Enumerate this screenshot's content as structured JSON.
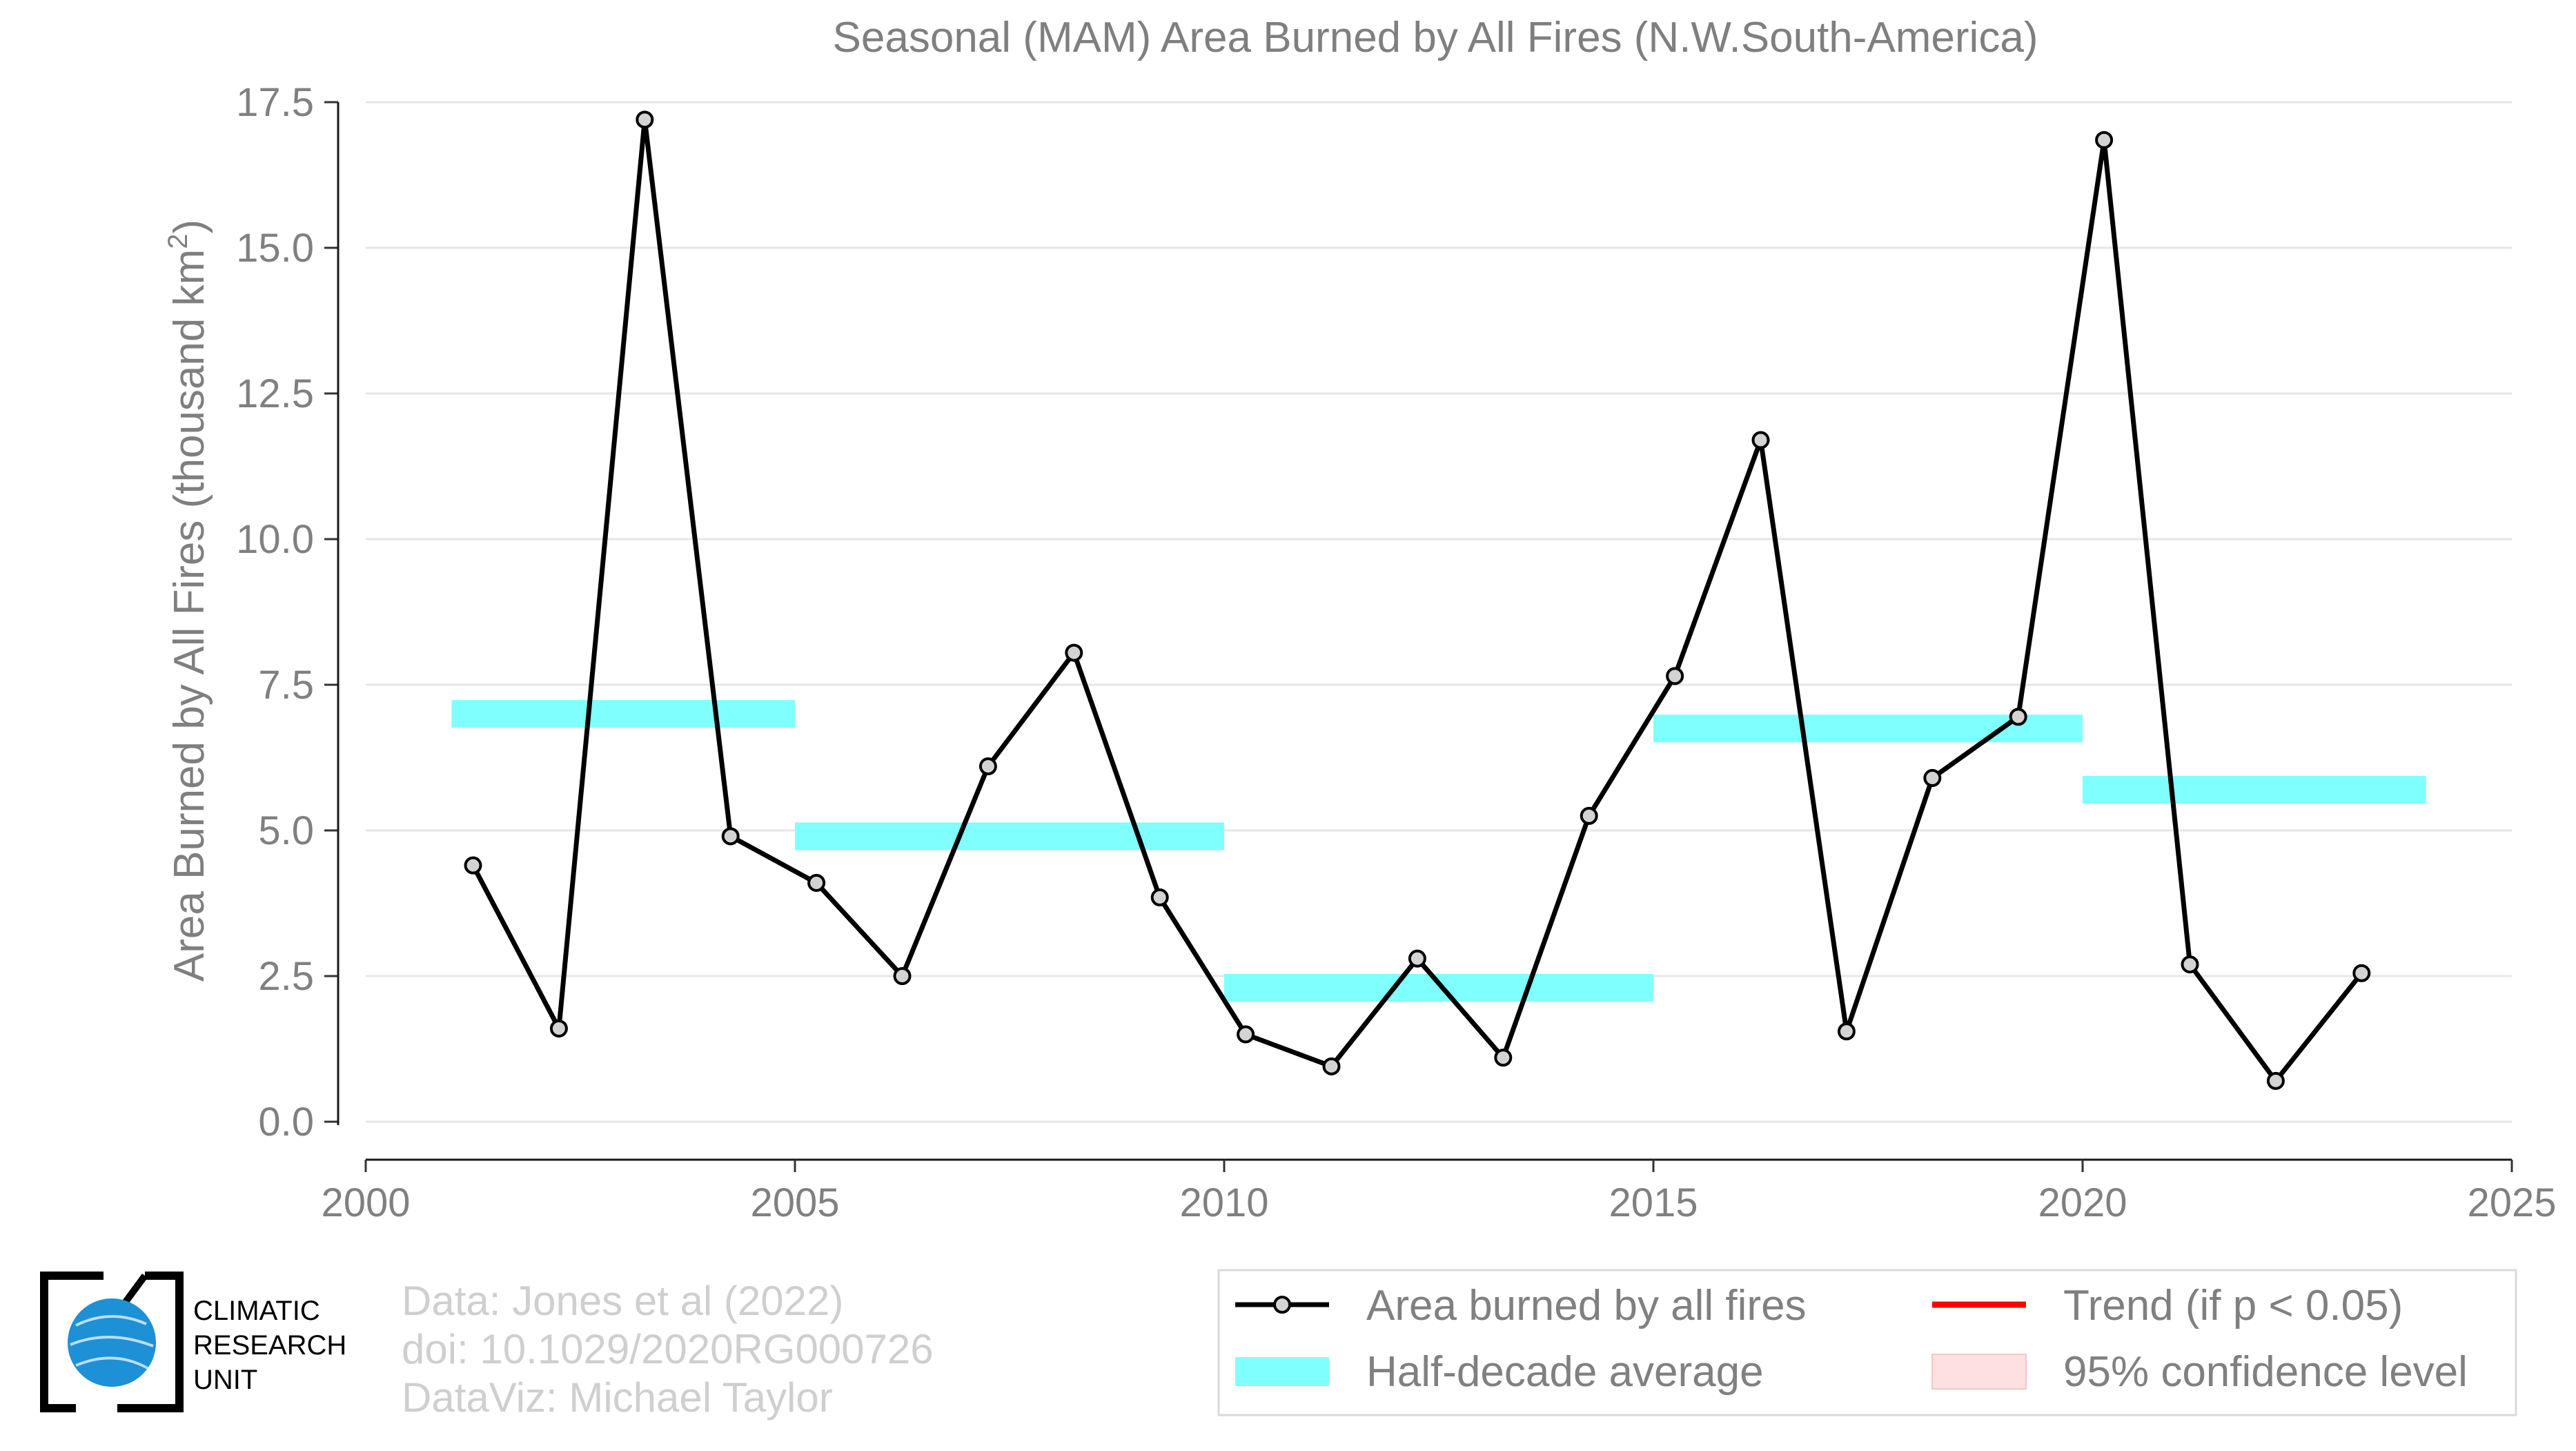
{
  "chart_data": {
    "type": "line",
    "title": "Seasonal (MAM) Area Burned by All Fires (N.W.South-America)",
    "ylabel": "Area Burned by All Fires (thousand km",
    "ylabel_sup": "2",
    "ylabel_end": ")",
    "xlabel": "",
    "xlim": [
      2000,
      2025
    ],
    "ylim": [
      0,
      17.5
    ],
    "x_ticks": [
      2000,
      2005,
      2010,
      2015,
      2020,
      2025
    ],
    "y_ticks": [
      0,
      2.5,
      5,
      7.5,
      10,
      12.5,
      15,
      17.5
    ],
    "y_tick_labels": [
      "0.0",
      "2.5",
      "5.0",
      "7.5",
      "10.0",
      "12.5",
      "15.0",
      "17.5"
    ],
    "grid": true,
    "series": [
      {
        "name": "Area burned by all fires",
        "color": "#000000",
        "marker_fill": "#d3d3d3",
        "x": [
          2001.25,
          2002.25,
          2003.25,
          2004.25,
          2005.25,
          2006.25,
          2007.25,
          2008.25,
          2009.25,
          2010.25,
          2011.25,
          2012.25,
          2013.25,
          2014.25,
          2015.25,
          2016.25,
          2017.25,
          2018.25,
          2019.25,
          2020.25,
          2021.25,
          2022.25,
          2023.25
        ],
        "y": [
          4.4,
          1.6,
          17.2,
          4.9,
          4.1,
          2.5,
          6.1,
          8.05,
          3.85,
          1.5,
          0.95,
          2.8,
          1.1,
          5.25,
          7.65,
          11.7,
          1.55,
          5.9,
          6.95,
          16.85,
          2.7,
          0.7,
          2.55
        ]
      }
    ],
    "half_decade_average": {
      "name": "Half-decade average",
      "color": "#80ffff",
      "segments": [
        {
          "x0": 2001,
          "x1": 2005,
          "y": 7.0
        },
        {
          "x0": 2005,
          "x1": 2010,
          "y": 4.9
        },
        {
          "x0": 2010,
          "x1": 2015,
          "y": 2.3
        },
        {
          "x0": 2015,
          "x1": 2020,
          "y": 6.75
        },
        {
          "x0": 2020,
          "x1": 2024,
          "y": 5.7
        }
      ]
    },
    "legend": {
      "placement": "bottom-right",
      "items": [
        {
          "label": "Area burned by all fires",
          "kind": "line-marker",
          "color": "#000000"
        },
        {
          "label": "Trend (if p < 0.05)",
          "kind": "line",
          "color": "#ff0000"
        },
        {
          "label": "Half-decade average",
          "kind": "band",
          "color": "#80ffff"
        },
        {
          "label": "95% confidence level",
          "kind": "box",
          "color": "#ffe0e0"
        }
      ]
    }
  },
  "credits": {
    "line1": "Data: Jones et al (2022)",
    "line2": "doi: 10.1029/2020RG000726",
    "line3": "DataViz: Michael Taylor"
  },
  "logo": {
    "line1": "CLIMATIC",
    "line2": "RESEARCH",
    "line3": "UNIT",
    "globe_color": "#1e90d6"
  }
}
